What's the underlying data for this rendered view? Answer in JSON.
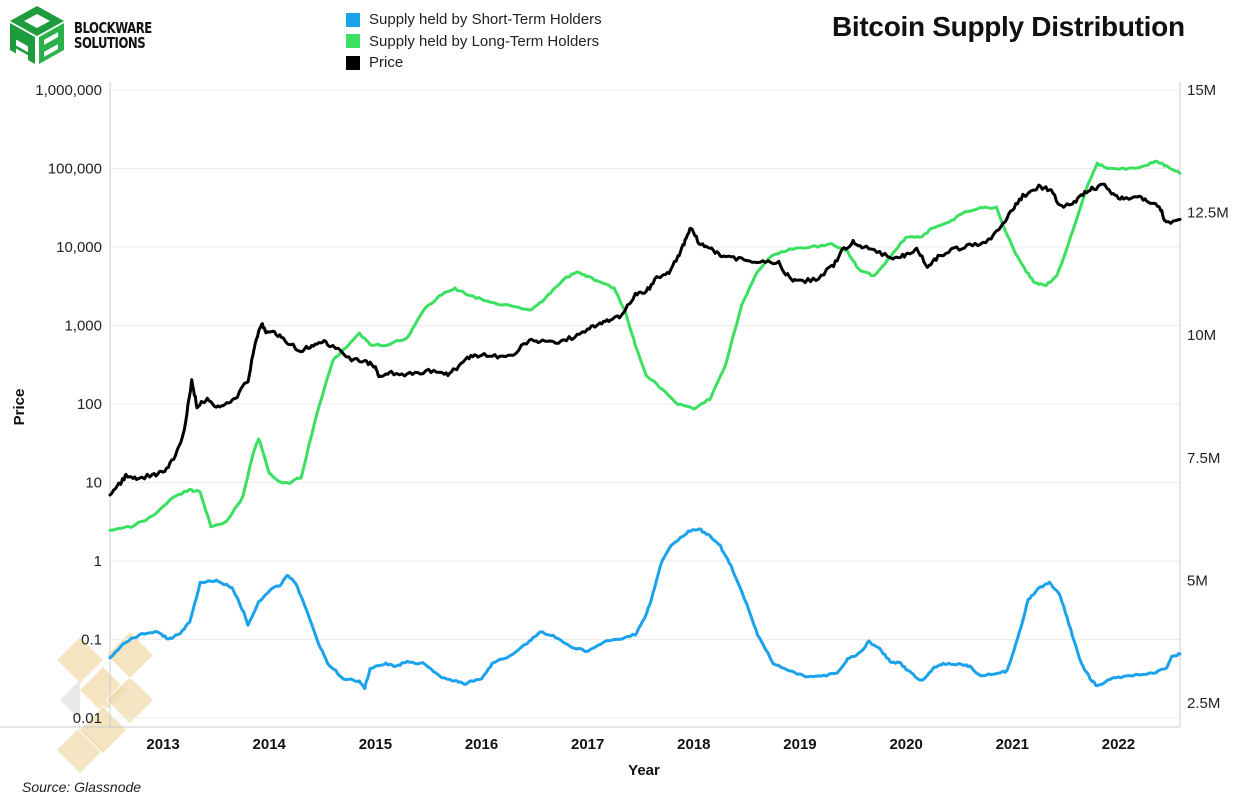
{
  "header": {
    "logo_line1": "BLOCKWARE",
    "logo_line2": "SOLUTIONS",
    "title": "Bitcoin Supply Distribution"
  },
  "legend": [
    {
      "label": "Supply held by Short-Term Holders",
      "color": "#1aa3ec"
    },
    {
      "label": "Supply held by Long-Term Holders",
      "color": "#3ce060"
    },
    {
      "label": "Price",
      "color": "#000000"
    }
  ],
  "footer": {
    "source": "Source: Glassnode"
  },
  "colors": {
    "grid": "#ececec",
    "axis": "#cccccc",
    "brand_green": "#1e9b3c",
    "watermark": "#f2dcae"
  },
  "chart_data": {
    "type": "line",
    "title": "Bitcoin Supply Distribution",
    "xlabel": "Year",
    "ylabel": "Price",
    "y2label": "",
    "grid": true,
    "legend_position": "top-center",
    "x_ticks": [
      "2013",
      "2014",
      "2015",
      "2016",
      "2017",
      "2018",
      "2019",
      "2020",
      "2021",
      "2022"
    ],
    "x_range": [
      2012.5,
      2022.58
    ],
    "y_left": {
      "scale": "log",
      "range": [
        0.01,
        1000000
      ],
      "ticks": [
        1000000,
        100000,
        10000,
        1000,
        100,
        10,
        1,
        0.1,
        0.01
      ],
      "tick_labels": [
        "1,000,000",
        "100,000",
        "10,000",
        "1,000",
        "100",
        "10",
        "1",
        "0.1",
        "0.01"
      ]
    },
    "y_right": {
      "scale": "linear",
      "range": [
        2500000,
        15000000
      ],
      "ticks": [
        15000000,
        12500000,
        10000000,
        7500000,
        5000000,
        2500000
      ],
      "tick_labels": [
        "15M",
        "12.5M",
        "10M",
        "7.5M",
        "5M",
        "2.5M"
      ]
    },
    "series": [
      {
        "name": "Price",
        "axis": "left",
        "color": "#000000",
        "points": [
          [
            2012.5,
            6.5
          ],
          [
            2012.6,
            10
          ],
          [
            2012.65,
            12
          ],
          [
            2012.75,
            11
          ],
          [
            2012.9,
            12.5
          ],
          [
            2013.0,
            13.5
          ],
          [
            2013.1,
            20
          ],
          [
            2013.2,
            45
          ],
          [
            2013.27,
            200
          ],
          [
            2013.32,
            90
          ],
          [
            2013.4,
            115
          ],
          [
            2013.5,
            95
          ],
          [
            2013.6,
            100
          ],
          [
            2013.7,
            130
          ],
          [
            2013.8,
            200
          ],
          [
            2013.87,
            600
          ],
          [
            2013.93,
            1100
          ],
          [
            2013.97,
            800
          ],
          [
            2014.05,
            850
          ],
          [
            2014.15,
            620
          ],
          [
            2014.3,
            480
          ],
          [
            2014.4,
            560
          ],
          [
            2014.5,
            620
          ],
          [
            2014.6,
            550
          ],
          [
            2014.75,
            380
          ],
          [
            2014.9,
            350
          ],
          [
            2015.0,
            300
          ],
          [
            2015.05,
            210
          ],
          [
            2015.15,
            250
          ],
          [
            2015.3,
            240
          ],
          [
            2015.45,
            260
          ],
          [
            2015.6,
            260
          ],
          [
            2015.7,
            240
          ],
          [
            2015.8,
            320
          ],
          [
            2015.9,
            400
          ],
          [
            2016.0,
            420
          ],
          [
            2016.15,
            410
          ],
          [
            2016.3,
            440
          ],
          [
            2016.45,
            650
          ],
          [
            2016.55,
            640
          ],
          [
            2016.7,
            600
          ],
          [
            2016.85,
            700
          ],
          [
            2017.0,
            900
          ],
          [
            2017.1,
            1000
          ],
          [
            2017.2,
            1150
          ],
          [
            2017.3,
            1300
          ],
          [
            2017.45,
            2500
          ],
          [
            2017.55,
            2700
          ],
          [
            2017.65,
            4000
          ],
          [
            2017.75,
            4500
          ],
          [
            2017.85,
            7500
          ],
          [
            2017.92,
            12000
          ],
          [
            2017.97,
            18000
          ],
          [
            2018.05,
            11000
          ],
          [
            2018.15,
            9500
          ],
          [
            2018.25,
            8000
          ],
          [
            2018.35,
            7500
          ],
          [
            2018.5,
            6500
          ],
          [
            2018.65,
            6500
          ],
          [
            2018.8,
            6300
          ],
          [
            2018.9,
            4000
          ],
          [
            2019.0,
            3600
          ],
          [
            2019.15,
            3900
          ],
          [
            2019.3,
            5500
          ],
          [
            2019.4,
            9000
          ],
          [
            2019.5,
            11500
          ],
          [
            2019.6,
            10000
          ],
          [
            2019.75,
            8500
          ],
          [
            2019.9,
            7300
          ],
          [
            2020.0,
            8000
          ],
          [
            2020.1,
            9500
          ],
          [
            2020.2,
            5500
          ],
          [
            2020.3,
            7500
          ],
          [
            2020.45,
            9200
          ],
          [
            2020.6,
            10500
          ],
          [
            2020.75,
            11500
          ],
          [
            2020.9,
            18000
          ],
          [
            2021.0,
            30000
          ],
          [
            2021.1,
            45000
          ],
          [
            2021.25,
            58000
          ],
          [
            2021.35,
            55000
          ],
          [
            2021.45,
            34000
          ],
          [
            2021.55,
            33000
          ],
          [
            2021.65,
            45000
          ],
          [
            2021.75,
            55000
          ],
          [
            2021.87,
            62000
          ],
          [
            2021.95,
            48000
          ],
          [
            2022.05,
            40000
          ],
          [
            2022.2,
            44000
          ],
          [
            2022.3,
            38000
          ],
          [
            2022.4,
            30000
          ],
          [
            2022.45,
            20000
          ],
          [
            2022.58,
            22500
          ]
        ]
      },
      {
        "name": "Supply held by Long-Term Holders",
        "axis": "right",
        "color": "#3ce060",
        "points": [
          [
            2012.5,
            6000000.0
          ],
          [
            2012.7,
            6100000.0
          ],
          [
            2012.9,
            6300000.0
          ],
          [
            2013.1,
            6700000.0
          ],
          [
            2013.25,
            6850000.0
          ],
          [
            2013.35,
            6800000.0
          ],
          [
            2013.45,
            6100000.0
          ],
          [
            2013.6,
            6200000.0
          ],
          [
            2013.75,
            6700000.0
          ],
          [
            2013.85,
            7600000.0
          ],
          [
            2013.9,
            7900000.0
          ],
          [
            2014.0,
            7200000.0
          ],
          [
            2014.1,
            7000000.0
          ],
          [
            2014.2,
            7000000.0
          ],
          [
            2014.3,
            7100000.0
          ],
          [
            2014.45,
            8400000.0
          ],
          [
            2014.6,
            9500000.0
          ],
          [
            2014.75,
            9800000.0
          ],
          [
            2014.85,
            10050000.0
          ],
          [
            2014.95,
            9800000.0
          ],
          [
            2015.1,
            9800000.0
          ],
          [
            2015.3,
            9950000.0
          ],
          [
            2015.45,
            10500000.0
          ],
          [
            2015.6,
            10800000.0
          ],
          [
            2015.75,
            10950000.0
          ],
          [
            2015.9,
            10800000.0
          ],
          [
            2016.05,
            10700000.0
          ],
          [
            2016.25,
            10600000.0
          ],
          [
            2016.45,
            10500000.0
          ],
          [
            2016.6,
            10750000.0
          ],
          [
            2016.75,
            11100000.0
          ],
          [
            2016.9,
            11300000.0
          ],
          [
            2017.0,
            11200000.0
          ],
          [
            2017.1,
            11100000.0
          ],
          [
            2017.25,
            10950000.0
          ],
          [
            2017.35,
            10500000.0
          ],
          [
            2017.45,
            9800000.0
          ],
          [
            2017.55,
            9200000.0
          ],
          [
            2017.7,
            8900000.0
          ],
          [
            2017.85,
            8600000.0
          ],
          [
            2018.0,
            8500000.0
          ],
          [
            2018.15,
            8700000.0
          ],
          [
            2018.3,
            9400000.0
          ],
          [
            2018.45,
            10600000.0
          ],
          [
            2018.6,
            11300000.0
          ],
          [
            2018.75,
            11650000.0
          ],
          [
            2018.9,
            11750000.0
          ],
          [
            2019.1,
            11800000.0
          ],
          [
            2019.3,
            11850000.0
          ],
          [
            2019.45,
            11700000.0
          ],
          [
            2019.55,
            11350000.0
          ],
          [
            2019.7,
            11200000.0
          ],
          [
            2019.85,
            11600000.0
          ],
          [
            2020.0,
            12000000.0
          ],
          [
            2020.15,
            12000000.0
          ],
          [
            2020.25,
            12200000.0
          ],
          [
            2020.4,
            12300000.0
          ],
          [
            2020.55,
            12500000.0
          ],
          [
            2020.7,
            12600000.0
          ],
          [
            2020.85,
            12600000.0
          ],
          [
            2021.0,
            11800000.0
          ],
          [
            2021.1,
            11400000.0
          ],
          [
            2021.2,
            11100000.0
          ],
          [
            2021.3,
            11000000.0
          ],
          [
            2021.42,
            11200000.0
          ],
          [
            2021.55,
            12000000.0
          ],
          [
            2021.7,
            13000000.0
          ],
          [
            2021.8,
            13500000.0
          ],
          [
            2021.92,
            13400000.0
          ],
          [
            2022.1,
            13400000.0
          ],
          [
            2022.25,
            13450000.0
          ],
          [
            2022.35,
            13550000.0
          ],
          [
            2022.45,
            13450000.0
          ],
          [
            2022.58,
            13300000.0
          ]
        ]
      },
      {
        "name": "Supply held by Short-Term Holders",
        "axis": "right",
        "color": "#1aa3ec",
        "points": [
          [
            2012.5,
            3400000.0
          ],
          [
            2012.65,
            3750000.0
          ],
          [
            2012.8,
            3900000.0
          ],
          [
            2012.95,
            3950000.0
          ],
          [
            2013.05,
            3800000.0
          ],
          [
            2013.15,
            3900000.0
          ],
          [
            2013.25,
            4150000.0
          ],
          [
            2013.35,
            4950000.0
          ],
          [
            2013.5,
            5000000.0
          ],
          [
            2013.65,
            4850000.0
          ],
          [
            2013.75,
            4400000.0
          ],
          [
            2013.8,
            4100000.0
          ],
          [
            2013.9,
            4550000.0
          ],
          [
            2014.0,
            4800000.0
          ],
          [
            2014.1,
            4900000.0
          ],
          [
            2014.17,
            5100000.0
          ],
          [
            2014.25,
            4950000.0
          ],
          [
            2014.35,
            4400000.0
          ],
          [
            2014.45,
            3800000.0
          ],
          [
            2014.55,
            3300000.0
          ],
          [
            2014.7,
            3000000.0
          ],
          [
            2014.85,
            2950000.0
          ],
          [
            2014.9,
            2800000.0
          ],
          [
            2014.95,
            3200000.0
          ],
          [
            2015.1,
            3300000.0
          ],
          [
            2015.2,
            3250000.0
          ],
          [
            2015.3,
            3350000.0
          ],
          [
            2015.45,
            3300000.0
          ],
          [
            2015.6,
            3050000.0
          ],
          [
            2015.75,
            2950000.0
          ],
          [
            2015.85,
            2900000.0
          ],
          [
            2016.0,
            3000000.0
          ],
          [
            2016.1,
            3300000.0
          ],
          [
            2016.3,
            3500000.0
          ],
          [
            2016.45,
            3750000.0
          ],
          [
            2016.55,
            3950000.0
          ],
          [
            2016.7,
            3850000.0
          ],
          [
            2016.85,
            3650000.0
          ],
          [
            2017.0,
            3550000.0
          ],
          [
            2017.15,
            3750000.0
          ],
          [
            2017.3,
            3800000.0
          ],
          [
            2017.45,
            3900000.0
          ],
          [
            2017.55,
            4300000.0
          ],
          [
            2017.6,
            4600000.0
          ],
          [
            2017.7,
            5400000.0
          ],
          [
            2017.8,
            5750000.0
          ],
          [
            2017.95,
            6000000.0
          ],
          [
            2018.05,
            6050000.0
          ],
          [
            2018.15,
            5900000.0
          ],
          [
            2018.25,
            5700000.0
          ],
          [
            2018.35,
            5300000.0
          ],
          [
            2018.5,
            4500000.0
          ],
          [
            2018.6,
            3900000.0
          ],
          [
            2018.75,
            3300000.0
          ],
          [
            2018.9,
            3150000.0
          ],
          [
            2019.05,
            3050000.0
          ],
          [
            2019.2,
            3050000.0
          ],
          [
            2019.35,
            3100000.0
          ],
          [
            2019.45,
            3400000.0
          ],
          [
            2019.55,
            3500000.0
          ],
          [
            2019.65,
            3750000.0
          ],
          [
            2019.75,
            3600000.0
          ],
          [
            2019.85,
            3350000.0
          ],
          [
            2019.95,
            3300000.0
          ],
          [
            2020.05,
            3100000.0
          ],
          [
            2020.15,
            2950000.0
          ],
          [
            2020.25,
            3200000.0
          ],
          [
            2020.35,
            3300000.0
          ],
          [
            2020.5,
            3300000.0
          ],
          [
            2020.6,
            3250000.0
          ],
          [
            2020.7,
            3050000.0
          ],
          [
            2020.85,
            3100000.0
          ],
          [
            2020.95,
            3150000.0
          ],
          [
            2021.05,
            3800000.0
          ],
          [
            2021.15,
            4600000.0
          ],
          [
            2021.25,
            4850000.0
          ],
          [
            2021.35,
            4950000.0
          ],
          [
            2021.45,
            4700000.0
          ],
          [
            2021.55,
            4000000.0
          ],
          [
            2021.65,
            3300000.0
          ],
          [
            2021.75,
            2950000.0
          ],
          [
            2021.8,
            2850000.0
          ],
          [
            2021.95,
            3000000.0
          ],
          [
            2022.1,
            3050000.0
          ],
          [
            2022.3,
            3100000.0
          ],
          [
            2022.45,
            3200000.0
          ],
          [
            2022.5,
            3450000.0
          ],
          [
            2022.58,
            3500000.0
          ]
        ]
      }
    ]
  }
}
